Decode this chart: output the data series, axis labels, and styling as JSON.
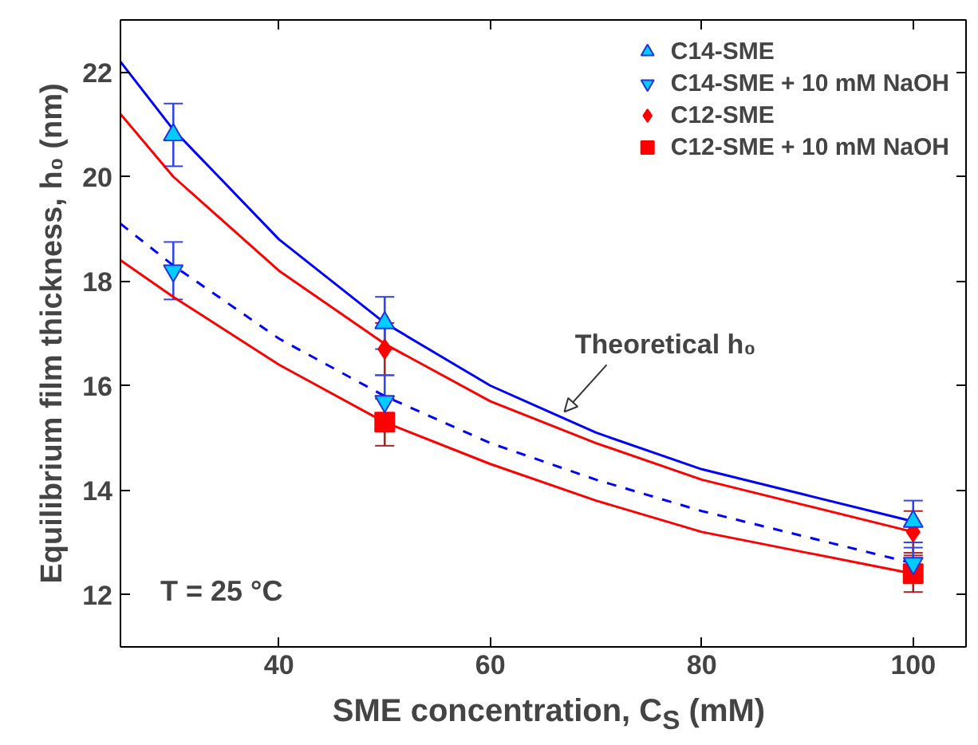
{
  "chart_data": {
    "type": "scatter",
    "xlabel": "SME concentration, C$_{S}$ (mM)",
    "ylabel": "Equilibrium film thickness, h₀ (nm)",
    "xlim": [
      25,
      105
    ],
    "xticks": [
      40,
      60,
      80,
      100
    ],
    "ylim": [
      11,
      23
    ],
    "yticks": [
      12,
      14,
      16,
      18,
      20,
      22
    ],
    "grid": false,
    "legend": "top right",
    "annotations": [
      {
        "text": "Theoretical h₀",
        "x": 67,
        "y": 15.5
      },
      "T = 25 °C"
    ],
    "series": [
      {
        "name": "C14-SME",
        "type": "scatter",
        "marker": "triangle",
        "color": "#00ccff",
        "x": [
          30,
          50,
          100
        ],
        "values": [
          20.8,
          17.2,
          13.4
        ],
        "errors": [
          0.6,
          0.5,
          0.4
        ]
      },
      {
        "name": "C14-SME + 10 mM NaOH",
        "type": "scatter",
        "color": "#00ccff",
        "x": [
          30,
          50,
          100
        ],
        "values": [
          18.2,
          15.7,
          12.6
        ],
        "errors": [
          0.55,
          0.5,
          0.3
        ]
      },
      {
        "name": "C12-SME",
        "type": "scatter",
        "marker": "diamond",
        "color": "#ff0000",
        "x": [
          50,
          100
        ],
        "values": [
          16.7,
          13.2
        ],
        "errors": [
          0.5,
          0.4
        ]
      },
      {
        "name": "C12-SME + 10 mM NaOH",
        "type": "scatter",
        "marker": "square",
        "color": "#ff0000",
        "x": [
          50,
          100
        ],
        "values": [
          15.3,
          12.4
        ],
        "errors": [
          0.45,
          0.35
        ]
      },
      {
        "type": "line",
        "line_style": "solid",
        "color": "#0000ff",
        "x": [
          25,
          30,
          40,
          50,
          60,
          70,
          80,
          90,
          100
        ],
        "values": [
          22.2,
          20.9,
          18.8,
          17.2,
          16.0,
          15.1,
          14.4,
          13.9,
          13.4
        ]
      },
      {
        "type": "line",
        "line_style": "solid",
        "color": "#ff0000",
        "x": [
          25,
          30,
          40,
          50,
          60,
          70,
          80,
          90,
          100
        ],
        "values": [
          21.2,
          20.0,
          18.2,
          16.8,
          15.7,
          14.9,
          14.2,
          13.7,
          13.2
        ]
      },
      {
        "type": "line",
        "line_style": "dashed",
        "color": "#0000ff",
        "x": [
          25,
          30,
          40,
          50,
          60,
          70,
          80,
          90,
          100
        ],
        "values": [
          19.1,
          18.3,
          16.9,
          15.8,
          14.9,
          14.2,
          13.6,
          13.1,
          12.6
        ]
      },
      {
        "type": "line",
        "line_style": "solid",
        "color": "#ff0000",
        "x": [
          25,
          30,
          40,
          50,
          60,
          70,
          80,
          90,
          100
        ],
        "values": [
          18.4,
          17.7,
          16.4,
          15.3,
          14.5,
          13.8,
          13.2,
          12.8,
          12.4
        ]
      }
    ]
  }
}
